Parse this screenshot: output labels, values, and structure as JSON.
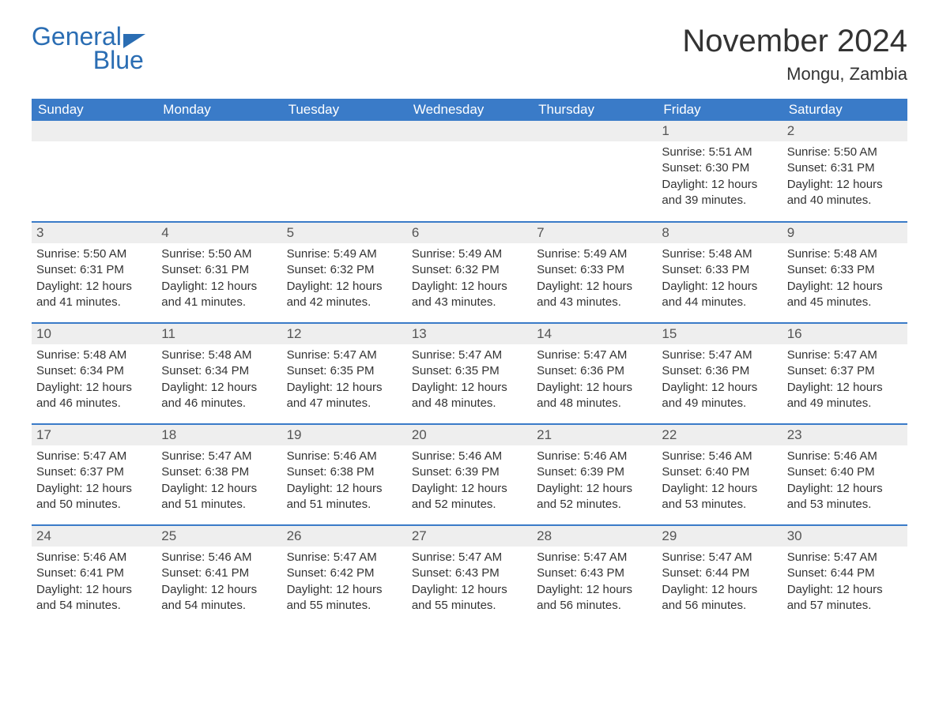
{
  "logo": {
    "word1": "General",
    "word2": "Blue",
    "color": "#2a6db3"
  },
  "title": "November 2024",
  "location": "Mongu, Zambia",
  "header_bg": "#3a7bc8",
  "header_fg": "#ffffff",
  "daynum_bg": "#eeeeee",
  "border_color": "#3a7bc8",
  "days_of_week": [
    "Sunday",
    "Monday",
    "Tuesday",
    "Wednesday",
    "Thursday",
    "Friday",
    "Saturday"
  ],
  "weeks": [
    [
      {
        "empty": true
      },
      {
        "empty": true
      },
      {
        "empty": true
      },
      {
        "empty": true
      },
      {
        "empty": true
      },
      {
        "num": "1",
        "sunrise": "Sunrise: 5:51 AM",
        "sunset": "Sunset: 6:30 PM",
        "daylight": "Daylight: 12 hours and 39 minutes."
      },
      {
        "num": "2",
        "sunrise": "Sunrise: 5:50 AM",
        "sunset": "Sunset: 6:31 PM",
        "daylight": "Daylight: 12 hours and 40 minutes."
      }
    ],
    [
      {
        "num": "3",
        "sunrise": "Sunrise: 5:50 AM",
        "sunset": "Sunset: 6:31 PM",
        "daylight": "Daylight: 12 hours and 41 minutes."
      },
      {
        "num": "4",
        "sunrise": "Sunrise: 5:50 AM",
        "sunset": "Sunset: 6:31 PM",
        "daylight": "Daylight: 12 hours and 41 minutes."
      },
      {
        "num": "5",
        "sunrise": "Sunrise: 5:49 AM",
        "sunset": "Sunset: 6:32 PM",
        "daylight": "Daylight: 12 hours and 42 minutes."
      },
      {
        "num": "6",
        "sunrise": "Sunrise: 5:49 AM",
        "sunset": "Sunset: 6:32 PM",
        "daylight": "Daylight: 12 hours and 43 minutes."
      },
      {
        "num": "7",
        "sunrise": "Sunrise: 5:49 AM",
        "sunset": "Sunset: 6:33 PM",
        "daylight": "Daylight: 12 hours and 43 minutes."
      },
      {
        "num": "8",
        "sunrise": "Sunrise: 5:48 AM",
        "sunset": "Sunset: 6:33 PM",
        "daylight": "Daylight: 12 hours and 44 minutes."
      },
      {
        "num": "9",
        "sunrise": "Sunrise: 5:48 AM",
        "sunset": "Sunset: 6:33 PM",
        "daylight": "Daylight: 12 hours and 45 minutes."
      }
    ],
    [
      {
        "num": "10",
        "sunrise": "Sunrise: 5:48 AM",
        "sunset": "Sunset: 6:34 PM",
        "daylight": "Daylight: 12 hours and 46 minutes."
      },
      {
        "num": "11",
        "sunrise": "Sunrise: 5:48 AM",
        "sunset": "Sunset: 6:34 PM",
        "daylight": "Daylight: 12 hours and 46 minutes."
      },
      {
        "num": "12",
        "sunrise": "Sunrise: 5:47 AM",
        "sunset": "Sunset: 6:35 PM",
        "daylight": "Daylight: 12 hours and 47 minutes."
      },
      {
        "num": "13",
        "sunrise": "Sunrise: 5:47 AM",
        "sunset": "Sunset: 6:35 PM",
        "daylight": "Daylight: 12 hours and 48 minutes."
      },
      {
        "num": "14",
        "sunrise": "Sunrise: 5:47 AM",
        "sunset": "Sunset: 6:36 PM",
        "daylight": "Daylight: 12 hours and 48 minutes."
      },
      {
        "num": "15",
        "sunrise": "Sunrise: 5:47 AM",
        "sunset": "Sunset: 6:36 PM",
        "daylight": "Daylight: 12 hours and 49 minutes."
      },
      {
        "num": "16",
        "sunrise": "Sunrise: 5:47 AM",
        "sunset": "Sunset: 6:37 PM",
        "daylight": "Daylight: 12 hours and 49 minutes."
      }
    ],
    [
      {
        "num": "17",
        "sunrise": "Sunrise: 5:47 AM",
        "sunset": "Sunset: 6:37 PM",
        "daylight": "Daylight: 12 hours and 50 minutes."
      },
      {
        "num": "18",
        "sunrise": "Sunrise: 5:47 AM",
        "sunset": "Sunset: 6:38 PM",
        "daylight": "Daylight: 12 hours and 51 minutes."
      },
      {
        "num": "19",
        "sunrise": "Sunrise: 5:46 AM",
        "sunset": "Sunset: 6:38 PM",
        "daylight": "Daylight: 12 hours and 51 minutes."
      },
      {
        "num": "20",
        "sunrise": "Sunrise: 5:46 AM",
        "sunset": "Sunset: 6:39 PM",
        "daylight": "Daylight: 12 hours and 52 minutes."
      },
      {
        "num": "21",
        "sunrise": "Sunrise: 5:46 AM",
        "sunset": "Sunset: 6:39 PM",
        "daylight": "Daylight: 12 hours and 52 minutes."
      },
      {
        "num": "22",
        "sunrise": "Sunrise: 5:46 AM",
        "sunset": "Sunset: 6:40 PM",
        "daylight": "Daylight: 12 hours and 53 minutes."
      },
      {
        "num": "23",
        "sunrise": "Sunrise: 5:46 AM",
        "sunset": "Sunset: 6:40 PM",
        "daylight": "Daylight: 12 hours and 53 minutes."
      }
    ],
    [
      {
        "num": "24",
        "sunrise": "Sunrise: 5:46 AM",
        "sunset": "Sunset: 6:41 PM",
        "daylight": "Daylight: 12 hours and 54 minutes."
      },
      {
        "num": "25",
        "sunrise": "Sunrise: 5:46 AM",
        "sunset": "Sunset: 6:41 PM",
        "daylight": "Daylight: 12 hours and 54 minutes."
      },
      {
        "num": "26",
        "sunrise": "Sunrise: 5:47 AM",
        "sunset": "Sunset: 6:42 PM",
        "daylight": "Daylight: 12 hours and 55 minutes."
      },
      {
        "num": "27",
        "sunrise": "Sunrise: 5:47 AM",
        "sunset": "Sunset: 6:43 PM",
        "daylight": "Daylight: 12 hours and 55 minutes."
      },
      {
        "num": "28",
        "sunrise": "Sunrise: 5:47 AM",
        "sunset": "Sunset: 6:43 PM",
        "daylight": "Daylight: 12 hours and 56 minutes."
      },
      {
        "num": "29",
        "sunrise": "Sunrise: 5:47 AM",
        "sunset": "Sunset: 6:44 PM",
        "daylight": "Daylight: 12 hours and 56 minutes."
      },
      {
        "num": "30",
        "sunrise": "Sunrise: 5:47 AM",
        "sunset": "Sunset: 6:44 PM",
        "daylight": "Daylight: 12 hours and 57 minutes."
      }
    ]
  ]
}
